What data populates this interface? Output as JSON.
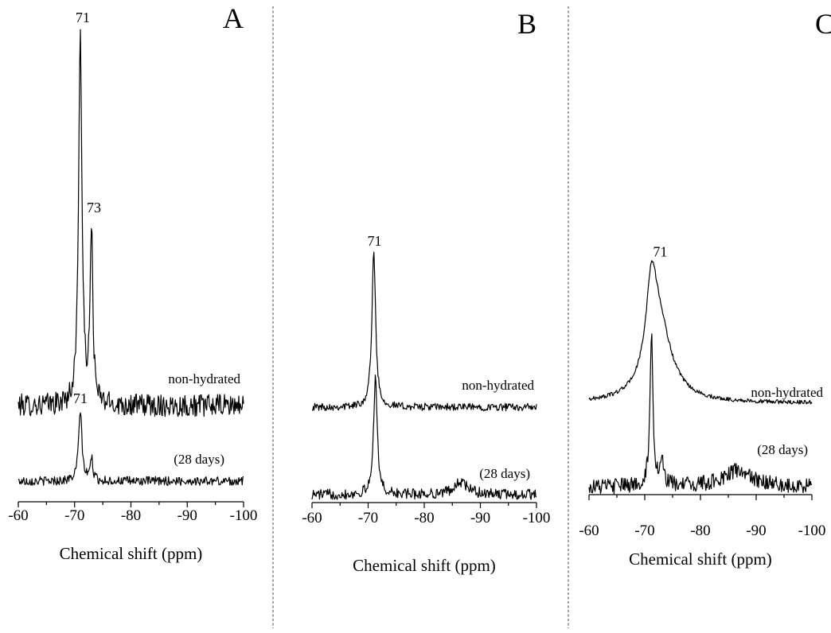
{
  "chart_data": [
    {
      "type": "line",
      "panel": "A",
      "xlabel": "Chemical shift (ppm)",
      "xlim": [
        -60,
        -100
      ],
      "x_ticks": [
        "-60",
        "-70",
        "-80",
        "-90",
        "-100"
      ],
      "series": [
        {
          "name": "non-hydrated",
          "peaks": [
            {
              "x": -71,
              "height": 1.0,
              "width": 0.35
            },
            {
              "x": -73,
              "height": 0.47,
              "width": 0.28
            }
          ],
          "noise": 0.03
        },
        {
          "name": "(28 days)",
          "peaks": [
            {
              "x": -71,
              "height": 0.19,
              "width": 0.35
            },
            {
              "x": -73,
              "height": 0.06,
              "width": 0.28
            }
          ],
          "noise": 0.012
        }
      ],
      "annotations": [
        {
          "text": "71",
          "series": 0,
          "x": -71
        },
        {
          "text": "73",
          "series": 0,
          "x": -73
        },
        {
          "text": "71",
          "series": 1,
          "x": -71
        }
      ]
    },
    {
      "type": "line",
      "panel": "B",
      "xlabel": "Chemical shift (ppm)",
      "xlim": [
        -60,
        -100
      ],
      "x_ticks": [
        "-60",
        "-70",
        "-80",
        "-90",
        "-100"
      ],
      "series": [
        {
          "name": "non-hydrated",
          "peaks": [
            {
              "x": -71,
              "height": 0.5,
              "width": 0.4
            }
          ],
          "noise": 0.012
        },
        {
          "name": "(28 days)",
          "peaks": [
            {
              "x": -71.3,
              "height": 0.39,
              "width": 0.38
            },
            {
              "x": -86.5,
              "height": 0.04,
              "width": 1.5
            }
          ],
          "noise": 0.017
        }
      ],
      "annotations": [
        {
          "text": "71",
          "series": 0,
          "x": -71
        }
      ]
    },
    {
      "type": "line",
      "panel": "C",
      "xlabel": "Chemical shift (ppm)",
      "xlim": [
        -60,
        -100
      ],
      "x_ticks": [
        "-60",
        "-70",
        "-80",
        "-90",
        "-100"
      ],
      "series": [
        {
          "name": "non-hydrated",
          "peaks": [
            {
              "x": -71.2,
              "height": 0.16,
              "width": 1.1
            },
            {
              "x": -72.5,
              "height": 0.16,
              "width": 2.7
            }
          ],
          "noise": 0.004
        },
        {
          "name": "(28 days)",
          "peaks": [
            {
              "x": -71.2,
              "height": 0.58,
              "width": 0.32
            },
            {
              "x": -73.0,
              "height": 0.09,
              "width": 0.45
            },
            {
              "x": -86.5,
              "height": 0.06,
              "width": 3.0
            }
          ],
          "noise": 0.03
        }
      ],
      "annotations": [
        {
          "text": "71",
          "series": 0,
          "x": -71.2
        }
      ]
    }
  ]
}
